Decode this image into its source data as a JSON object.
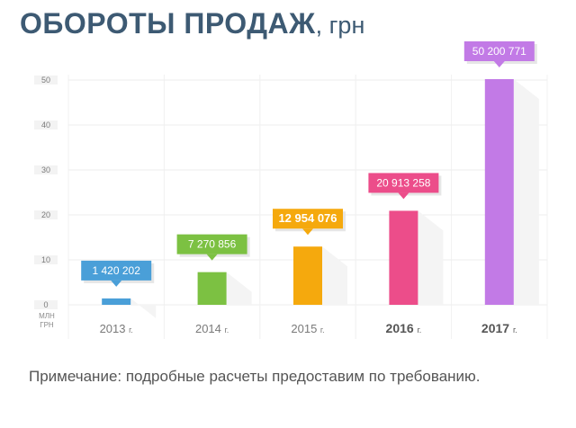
{
  "header": {
    "title": "ОБОРОТЫ ПРОДАЖ",
    "title_unit": ", грн"
  },
  "note": "Примечание: подробные расчеты предоставим по требованию.",
  "chart_data": {
    "type": "bar",
    "title": "ОБОРОТЫ ПРОДАЖ, грн",
    "ylabel": "МЛН ГРН",
    "xlabel": "",
    "ylim": [
      0,
      50
    ],
    "yticks": [
      0,
      10,
      20,
      30,
      40,
      50
    ],
    "grid": true,
    "categories": [
      "2013",
      "2014",
      "2015",
      "2016",
      "2017"
    ],
    "year_suffix": "г.",
    "bold_categories": [
      "2016",
      "2017"
    ],
    "values": [
      1.420202,
      7.270856,
      12.954076,
      20.913258,
      50.200771
    ],
    "data_labels": [
      "1 420 202",
      "7 270 856",
      "12 954 076",
      "20 913 258",
      "50 200 771"
    ],
    "bold_labels": [
      "12 954 076"
    ],
    "colors": [
      "#4a9fd8",
      "#7cc142",
      "#f5a90d",
      "#ec4d8a",
      "#c27ae6"
    ],
    "axis_units_line1": "МЛН",
    "axis_units_line2": "ГРН"
  }
}
